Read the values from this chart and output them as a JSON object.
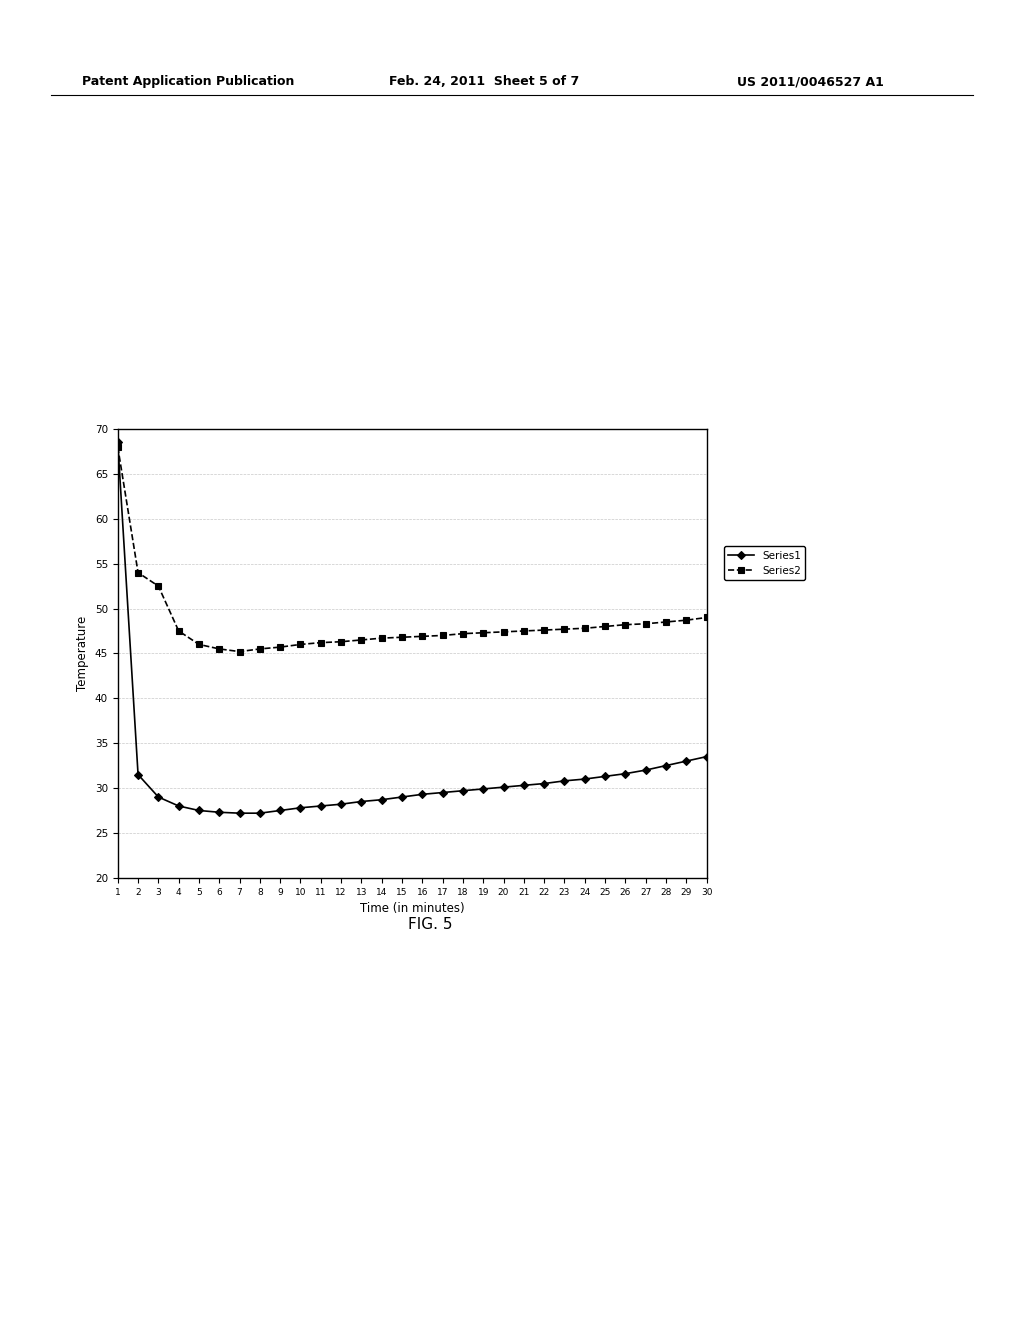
{
  "series1_x": [
    1,
    2,
    3,
    4,
    5,
    6,
    7,
    8,
    9,
    10,
    11,
    12,
    13,
    14,
    15,
    16,
    17,
    18,
    19,
    20,
    21,
    22,
    23,
    24,
    25,
    26,
    27,
    28,
    29,
    30
  ],
  "series1_y": [
    68.5,
    31.5,
    29.0,
    28.0,
    27.5,
    27.3,
    27.2,
    27.2,
    27.5,
    27.8,
    28.0,
    28.2,
    28.5,
    28.7,
    29.0,
    29.3,
    29.5,
    29.7,
    29.9,
    30.1,
    30.3,
    30.5,
    30.8,
    31.0,
    31.3,
    31.6,
    32.0,
    32.5,
    33.0,
    33.5
  ],
  "series2_x": [
    1,
    2,
    3,
    4,
    5,
    6,
    7,
    8,
    9,
    10,
    11,
    12,
    13,
    14,
    15,
    16,
    17,
    18,
    19,
    20,
    21,
    22,
    23,
    24,
    25,
    26,
    27,
    28,
    29,
    30
  ],
  "series2_y": [
    68.0,
    54.0,
    52.5,
    47.5,
    46.0,
    45.5,
    45.2,
    45.5,
    45.7,
    46.0,
    46.2,
    46.3,
    46.5,
    46.7,
    46.8,
    46.9,
    47.0,
    47.2,
    47.3,
    47.4,
    47.5,
    47.6,
    47.7,
    47.8,
    48.0,
    48.2,
    48.3,
    48.5,
    48.7,
    49.0
  ],
  "series1_label": "Series1",
  "series2_label": "Series2",
  "series1_color": "#000000",
  "series2_color": "#000000",
  "series1_linestyle": "solid",
  "series2_linestyle": "dashed",
  "series1_marker": "D",
  "series2_marker": "s",
  "xlabel": "Time (in minutes)",
  "ylabel": "Temperature",
  "ylim": [
    20,
    70
  ],
  "xlim": [
    1,
    30
  ],
  "yticks": [
    20,
    25,
    30,
    35,
    40,
    45,
    50,
    55,
    60,
    65,
    70
  ],
  "xticks": [
    1,
    2,
    3,
    4,
    5,
    6,
    7,
    8,
    9,
    10,
    11,
    12,
    13,
    14,
    15,
    16,
    17,
    18,
    19,
    20,
    21,
    22,
    23,
    24,
    25,
    26,
    27,
    28,
    29,
    30
  ],
  "figure_caption": "FIG. 5",
  "header_left": "Patent Application Publication",
  "header_center": "Feb. 24, 2011  Sheet 5 of 7",
  "header_right": "US 2011/0046527 A1",
  "background_color": "#ffffff",
  "grid_color": "#bbbbbb",
  "marker_size": 4,
  "line_width": 1.2
}
